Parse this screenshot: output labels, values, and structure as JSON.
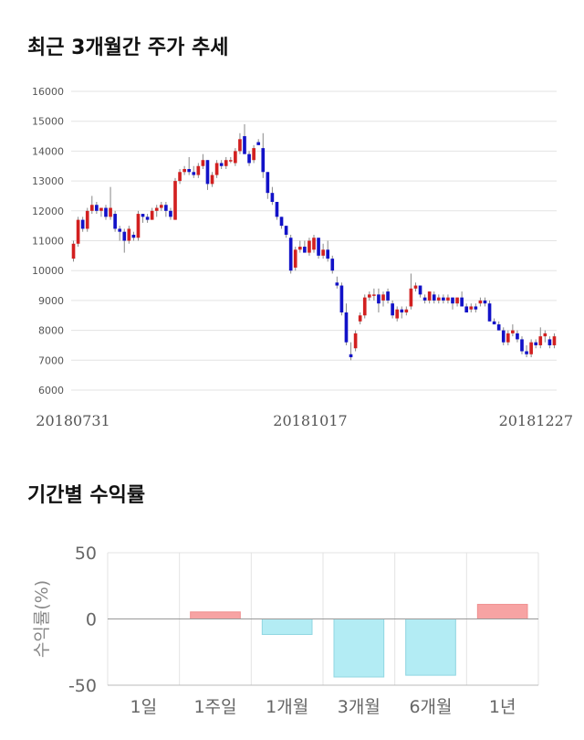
{
  "titles": {
    "price": "최근 3개월간 주가 추세",
    "returns": "기간별 수익률"
  },
  "colors": {
    "up": "#d22020",
    "down": "#1212c8",
    "bar_positive": "#f7a3a3",
    "bar_negative": "#b3ecf4",
    "grid": "#e3e3e3"
  },
  "chart_data": [
    {
      "type": "candlestick",
      "title": "최근 3개월간 주가 추세",
      "ylim": [
        6000,
        16000
      ],
      "y_ticks": [
        "6000",
        "7000",
        "8000",
        "9000",
        "10000",
        "11000",
        "12000",
        "13000",
        "14000",
        "15000",
        "16000"
      ],
      "x_tick_labels": [
        "20180731",
        "20181017",
        "20181227"
      ],
      "grid": true,
      "ohlc": [
        [
          10400,
          11000,
          10300,
          10900
        ],
        [
          10900,
          11800,
          10800,
          11700
        ],
        [
          11700,
          11800,
          11300,
          11400
        ],
        [
          11400,
          12100,
          11300,
          12000
        ],
        [
          12000,
          12500,
          11900,
          12200
        ],
        [
          12200,
          12300,
          11900,
          12000
        ],
        [
          12000,
          12100,
          11800,
          12100
        ],
        [
          12100,
          12200,
          11700,
          11800
        ],
        [
          11800,
          12800,
          11700,
          12100
        ],
        [
          11900,
          12000,
          11300,
          11400
        ],
        [
          11400,
          11500,
          11000,
          11300
        ],
        [
          11300,
          11400,
          10600,
          11000
        ],
        [
          11000,
          11500,
          10900,
          11400
        ],
        [
          11200,
          11300,
          11000,
          11100
        ],
        [
          11100,
          12000,
          11000,
          11900
        ],
        [
          11900,
          11900,
          11600,
          11800
        ],
        [
          11800,
          11900,
          11600,
          11700
        ],
        [
          11700,
          12100,
          11700,
          12000
        ],
        [
          12000,
          12200,
          11800,
          12100
        ],
        [
          12100,
          12300,
          12000,
          12200
        ],
        [
          12200,
          12300,
          11800,
          12000
        ],
        [
          12000,
          12100,
          11700,
          11800
        ],
        [
          11700,
          13100,
          11700,
          13000
        ],
        [
          13000,
          13400,
          12900,
          13300
        ],
        [
          13300,
          13500,
          13200,
          13400
        ],
        [
          13400,
          13800,
          13200,
          13300
        ],
        [
          13300,
          13500,
          13100,
          13200
        ],
        [
          13200,
          13600,
          13100,
          13500
        ],
        [
          13500,
          13900,
          13400,
          13700
        ],
        [
          13700,
          13700,
          12700,
          12900
        ],
        [
          12900,
          13300,
          12800,
          13200
        ],
        [
          13200,
          13700,
          13100,
          13600
        ],
        [
          13600,
          13700,
          13400,
          13500
        ],
        [
          13500,
          13800,
          13400,
          13700
        ],
        [
          13700,
          13800,
          13600,
          13700
        ],
        [
          13600,
          14100,
          13500,
          14000
        ],
        [
          14000,
          14600,
          13900,
          14400
        ],
        [
          14500,
          14900,
          13900,
          13900
        ],
        [
          13900,
          14000,
          13500,
          13600
        ],
        [
          13700,
          14200,
          13600,
          14100
        ],
        [
          14300,
          14400,
          14200,
          14200
        ],
        [
          14100,
          14600,
          13100,
          13300
        ],
        [
          13300,
          13300,
          12400,
          12600
        ],
        [
          12600,
          12800,
          12200,
          12300
        ],
        [
          12300,
          12300,
          11700,
          11800
        ],
        [
          11800,
          11800,
          11400,
          11500
        ],
        [
          11500,
          11500,
          11100,
          11200
        ],
        [
          11100,
          11200,
          9900,
          10000
        ],
        [
          10100,
          10800,
          10000,
          10700
        ],
        [
          10700,
          11000,
          10600,
          10800
        ],
        [
          10800,
          11000,
          10600,
          10600
        ],
        [
          10600,
          11100,
          10500,
          11000
        ],
        [
          10700,
          11200,
          10600,
          11100
        ],
        [
          11100,
          11100,
          10400,
          10500
        ],
        [
          10500,
          10900,
          10400,
          10700
        ],
        [
          10700,
          11000,
          10300,
          10400
        ],
        [
          10400,
          10500,
          9900,
          10000
        ],
        [
          9600,
          9800,
          9400,
          9500
        ],
        [
          9500,
          9600,
          8500,
          8600
        ],
        [
          8600,
          8900,
          7500,
          7600
        ],
        [
          7200,
          7600,
          7000,
          7100
        ],
        [
          7400,
          8000,
          7300,
          7900
        ],
        [
          8300,
          8600,
          8200,
          8500
        ],
        [
          8500,
          9200,
          8400,
          9100
        ],
        [
          9100,
          9300,
          9000,
          9200
        ],
        [
          9200,
          9400,
          9000,
          9200
        ],
        [
          9200,
          9400,
          8600,
          8900
        ],
        [
          9000,
          9300,
          8800,
          9200
        ],
        [
          9300,
          9400,
          8900,
          9000
        ],
        [
          8900,
          9000,
          8400,
          8500
        ],
        [
          8400,
          8800,
          8300,
          8700
        ],
        [
          8700,
          8800,
          8400,
          8600
        ],
        [
          8600,
          8800,
          8500,
          8700
        ],
        [
          8800,
          9900,
          8700,
          9400
        ],
        [
          9400,
          9600,
          9300,
          9500
        ],
        [
          9500,
          9500,
          9100,
          9200
        ],
        [
          9100,
          9200,
          8900,
          9000
        ],
        [
          9000,
          9300,
          8900,
          9300
        ],
        [
          9200,
          9300,
          8900,
          9000
        ],
        [
          9000,
          9200,
          8900,
          9100
        ],
        [
          9100,
          9200,
          8900,
          9000
        ],
        [
          9000,
          9200,
          8900,
          9100
        ],
        [
          9100,
          9100,
          8700,
          8900
        ],
        [
          8900,
          9100,
          8800,
          9100
        ],
        [
          9100,
          9300,
          8800,
          8800
        ],
        [
          8800,
          8900,
          8600,
          8600
        ],
        [
          8700,
          8900,
          8600,
          8800
        ],
        [
          8800,
          8900,
          8600,
          8700
        ],
        [
          8900,
          9100,
          8800,
          9000
        ],
        [
          9000,
          9100,
          8800,
          8900
        ],
        [
          8900,
          9000,
          8300,
          8300
        ],
        [
          8300,
          8400,
          8200,
          8200
        ],
        [
          8200,
          8300,
          8000,
          8000
        ],
        [
          8000,
          8100,
          7500,
          7600
        ],
        [
          7600,
          8000,
          7500,
          7900
        ],
        [
          7900,
          8200,
          7800,
          8000
        ],
        [
          7900,
          8000,
          7600,
          7700
        ],
        [
          7700,
          7800,
          7200,
          7300
        ],
        [
          7300,
          7500,
          7100,
          7200
        ],
        [
          7200,
          7700,
          7100,
          7600
        ],
        [
          7600,
          7700,
          7400,
          7500
        ],
        [
          7500,
          8100,
          7400,
          7800
        ],
        [
          7800,
          8000,
          7600,
          7900
        ],
        [
          7700,
          7800,
          7400,
          7500
        ],
        [
          7500,
          7900,
          7400,
          7800
        ]
      ]
    },
    {
      "type": "bar",
      "title": "기간별 수익률",
      "ylabel": "수익률(%)",
      "ylim": [
        -50,
        50
      ],
      "y_ticks": [
        "50",
        "0",
        "-50"
      ],
      "categories": [
        "1일",
        "1주일",
        "1개월",
        "3개월",
        "6개월",
        "1년"
      ],
      "values": [
        0,
        5.3,
        -11.7,
        -43.8,
        -42.5,
        11
      ]
    }
  ]
}
